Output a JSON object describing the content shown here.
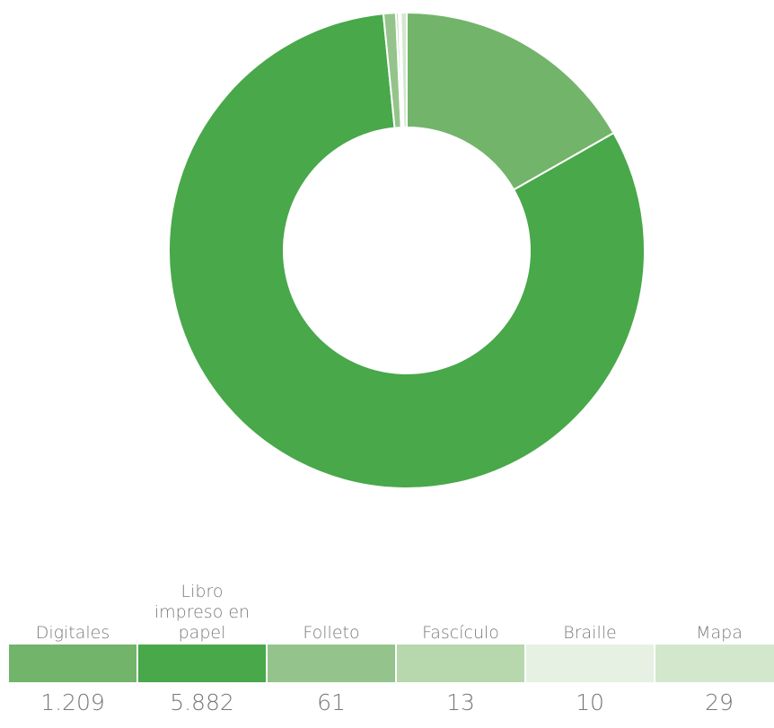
{
  "chart_data": {
    "type": "pie",
    "donut": true,
    "categories": [
      "Digitales",
      "Libro impreso en papel",
      "Folleto",
      "Fascículo",
      "Braille",
      "Mapa"
    ],
    "values": [
      1209,
      5882,
      61,
      13,
      10,
      29
    ],
    "value_labels": [
      "1.209",
      "5.882",
      "61",
      "13",
      "10",
      "29"
    ],
    "colors": [
      "#72b46a",
      "#48a84a",
      "#94c48b",
      "#b7d7ad",
      "#e6f1e3",
      "#d3e7cd"
    ],
    "legend_placement": "bottom"
  },
  "legend": {
    "items": [
      {
        "label": "Digitales",
        "value": "1.209",
        "color": "#72b46a"
      },
      {
        "label": "Libro impreso en papel",
        "value": "5.882",
        "color": "#48a84a"
      },
      {
        "label": "Folleto",
        "value": "61",
        "color": "#94c48b"
      },
      {
        "label": "Fascículo",
        "value": "13",
        "color": "#b7d7ad"
      },
      {
        "label": "Braille",
        "value": "10",
        "color": "#e6f1e3"
      },
      {
        "label": "Mapa",
        "value": "29",
        "color": "#d3e7cd"
      }
    ]
  }
}
